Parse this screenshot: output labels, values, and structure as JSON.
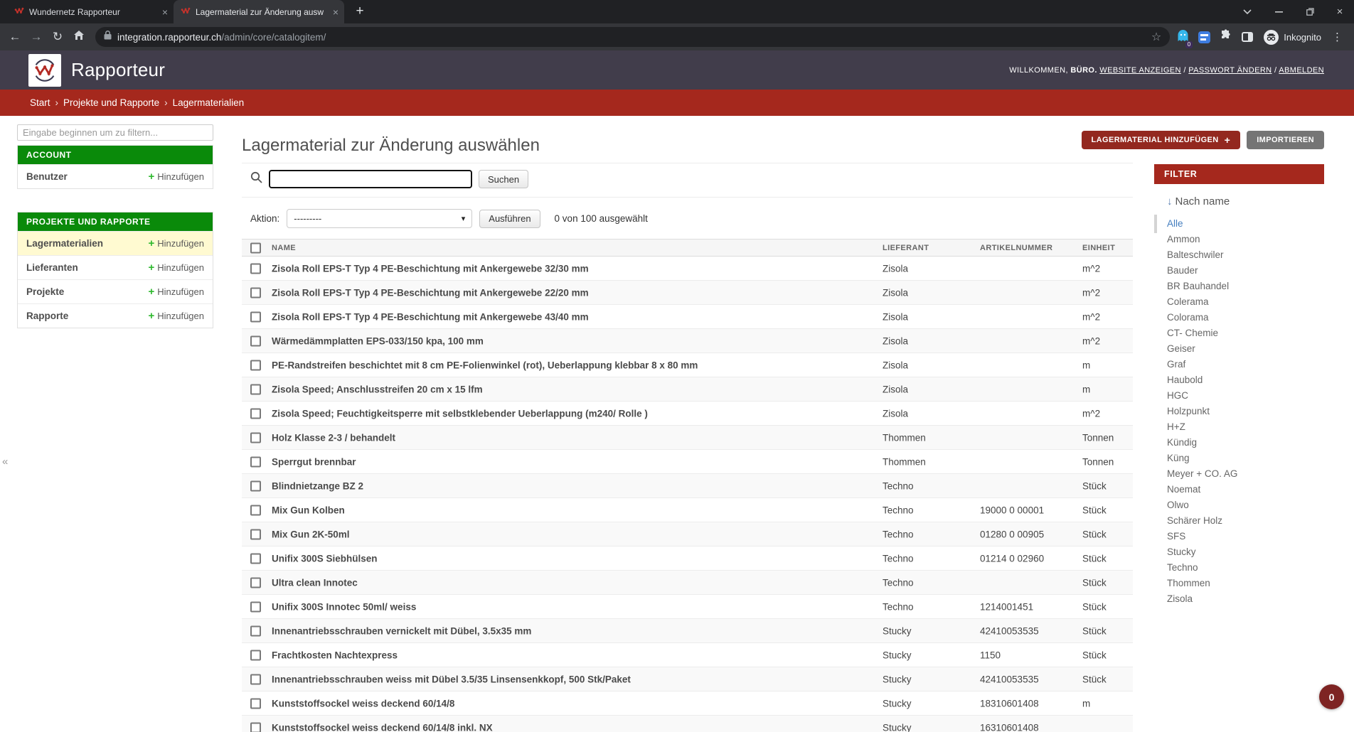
{
  "browser": {
    "tabs": [
      {
        "title": "Wundernetz Rapporteur",
        "active": false
      },
      {
        "title": "Lagermaterial zur Änderung ausw",
        "active": true
      }
    ],
    "url_host": "integration.rapporteur.ch",
    "url_path": "/admin/core/catalogitem/",
    "incognito_label": "Inkognito",
    "ghostery_badge": "0"
  },
  "header": {
    "brand": "Rapporteur",
    "welcome_prefix": "WILLKOMMEN,",
    "welcome_user": "BÜRO.",
    "links": [
      "WEBSITE ANZEIGEN",
      "PASSWORT ÄNDERN",
      "ABMELDEN"
    ]
  },
  "breadcrumb": {
    "items": [
      "Start",
      "Projekte und Rapporte",
      "Lagermaterialien"
    ],
    "separator": "›"
  },
  "sidebar": {
    "filter_placeholder": "Eingabe beginnen um zu filtern...",
    "add_label": "Hinzufügen",
    "sections": [
      {
        "title": "ACCOUNT",
        "items": [
          {
            "label": "Benutzer",
            "selected": false
          }
        ]
      },
      {
        "title": "PROJEKTE UND RAPPORTE",
        "items": [
          {
            "label": "Lagermaterialien",
            "selected": true
          },
          {
            "label": "Lieferanten",
            "selected": false
          },
          {
            "label": "Projekte",
            "selected": false
          },
          {
            "label": "Rapporte",
            "selected": false
          }
        ]
      }
    ]
  },
  "main": {
    "title": "Lagermaterial zur Änderung auswählen",
    "add_button": "LAGERMATERIAL HINZUFÜGEN",
    "import_button": "IMPORTIEREN",
    "search_value": "",
    "search_button": "Suchen",
    "action_label": "Aktion:",
    "action_value": "---------",
    "execute_button": "Ausführen",
    "selection_status": "0 von 100 ausgewählt",
    "table": {
      "columns": [
        "NAME",
        "LIEFERANT",
        "ARTIKELNUMMER",
        "EINHEIT"
      ],
      "rows": [
        {
          "name": "Zisola Roll EPS-T Typ 4 PE-Beschichtung mit Ankergewebe 32/30 mm",
          "lieferant": "Zisola",
          "artikelnummer": "",
          "einheit": "m^2"
        },
        {
          "name": "Zisola Roll EPS-T Typ 4 PE-Beschichtung mit Ankergewebe 22/20 mm",
          "lieferant": "Zisola",
          "artikelnummer": "",
          "einheit": "m^2"
        },
        {
          "name": "Zisola Roll EPS-T Typ 4 PE-Beschichtung mit Ankergewebe 43/40 mm",
          "lieferant": "Zisola",
          "artikelnummer": "",
          "einheit": "m^2"
        },
        {
          "name": "Wärmedämmplatten EPS-033/150 kpa, 100 mm",
          "lieferant": "Zisola",
          "artikelnummer": "",
          "einheit": "m^2"
        },
        {
          "name": "PE-Randstreifen beschichtet mit 8 cm PE-Folienwinkel (rot), Ueberlappung klebbar 8 x 80 mm",
          "lieferant": "Zisola",
          "artikelnummer": "",
          "einheit": "m"
        },
        {
          "name": "Zisola Speed; Anschlusstreifen 20 cm x 15 lfm",
          "lieferant": "Zisola",
          "artikelnummer": "",
          "einheit": "m"
        },
        {
          "name": "Zisola Speed; Feuchtigkeitsperre mit selbstklebender Ueberlappung (m240/ Rolle )",
          "lieferant": "Zisola",
          "artikelnummer": "",
          "einheit": "m^2"
        },
        {
          "name": "Holz Klasse 2-3 / behandelt",
          "lieferant": "Thommen",
          "artikelnummer": "",
          "einheit": "Tonnen"
        },
        {
          "name": "Sperrgut brennbar",
          "lieferant": "Thommen",
          "artikelnummer": "",
          "einheit": "Tonnen"
        },
        {
          "name": "Blindnietzange BZ 2",
          "lieferant": "Techno",
          "artikelnummer": "",
          "einheit": "Stück"
        },
        {
          "name": "Mix Gun Kolben",
          "lieferant": "Techno",
          "artikelnummer": "19000 0 00001",
          "einheit": "Stück"
        },
        {
          "name": "Mix Gun 2K-50ml",
          "lieferant": "Techno",
          "artikelnummer": "01280 0 00905",
          "einheit": "Stück"
        },
        {
          "name": "Unifix 300S Siebhülsen",
          "lieferant": "Techno",
          "artikelnummer": "01214 0 02960",
          "einheit": "Stück"
        },
        {
          "name": "Ultra clean Innotec",
          "lieferant": "Techno",
          "artikelnummer": "",
          "einheit": "Stück"
        },
        {
          "name": "Unifix 300S Innotec 50ml/ weiss",
          "lieferant": "Techno",
          "artikelnummer": "1214001451",
          "einheit": "Stück"
        },
        {
          "name": "Innenantriebsschrauben vernickelt mit Dübel, 3.5x35 mm",
          "lieferant": "Stucky",
          "artikelnummer": "42410053535",
          "einheit": "Stück"
        },
        {
          "name": "Frachtkosten Nachtexpress",
          "lieferant": "Stucky",
          "artikelnummer": "1150",
          "einheit": "Stück"
        },
        {
          "name": "Innenantriebsschrauben weiss mit Dübel 3.5/35 Linsensenkkopf, 500 Stk/Paket",
          "lieferant": "Stucky",
          "artikelnummer": "42410053535",
          "einheit": "Stück"
        },
        {
          "name": "Kunststoffsockel weiss deckend 60/14/8",
          "lieferant": "Stucky",
          "artikelnummer": "18310601408",
          "einheit": "m"
        },
        {
          "name": "Kunststoffsockel weiss deckend 60/14/8 inkl. NX",
          "lieferant": "Stucky",
          "artikelnummer": "16310601408",
          "einheit": ""
        }
      ]
    }
  },
  "filter_panel": {
    "title": "FILTER",
    "sort_label": "Nach name",
    "selected_item": "Alle",
    "items": [
      "Alle",
      "Ammon",
      "Balteschwiler",
      "Bauder",
      "BR Bauhandel",
      "Colerama",
      "Colorama",
      "CT- Chemie",
      "Geiser",
      "Graf",
      "Haubold",
      "HGC",
      "Holzpunkt",
      "H+Z",
      "Kündig",
      "Küng",
      "Meyer + CO. AG",
      "Noemat",
      "Olwo",
      "Schärer Holz",
      "SFS",
      "Stucky",
      "Techno",
      "Thommen",
      "Zisola"
    ]
  },
  "notification_badge": "0",
  "icons": {
    "back": "←",
    "forward": "→",
    "reload": "↻",
    "star": "☆",
    "overflow_menu": "⋮",
    "tab_close": "×",
    "new_tab": "+",
    "window_close": "×",
    "collapse": "«",
    "sort_arrow": "↓",
    "select_caret": "▾",
    "add_plus": "+",
    "object_plus": "+"
  },
  "colors": {
    "header_bg": "#413d4b",
    "accent_red": "#a5281d",
    "button_red": "#93281f",
    "button_gray": "#757575",
    "section_green": "#0a8a0a",
    "selected_yellow": "#fffad1",
    "filter_link_blue": "#447ebf",
    "badge_red": "#7e2423"
  }
}
